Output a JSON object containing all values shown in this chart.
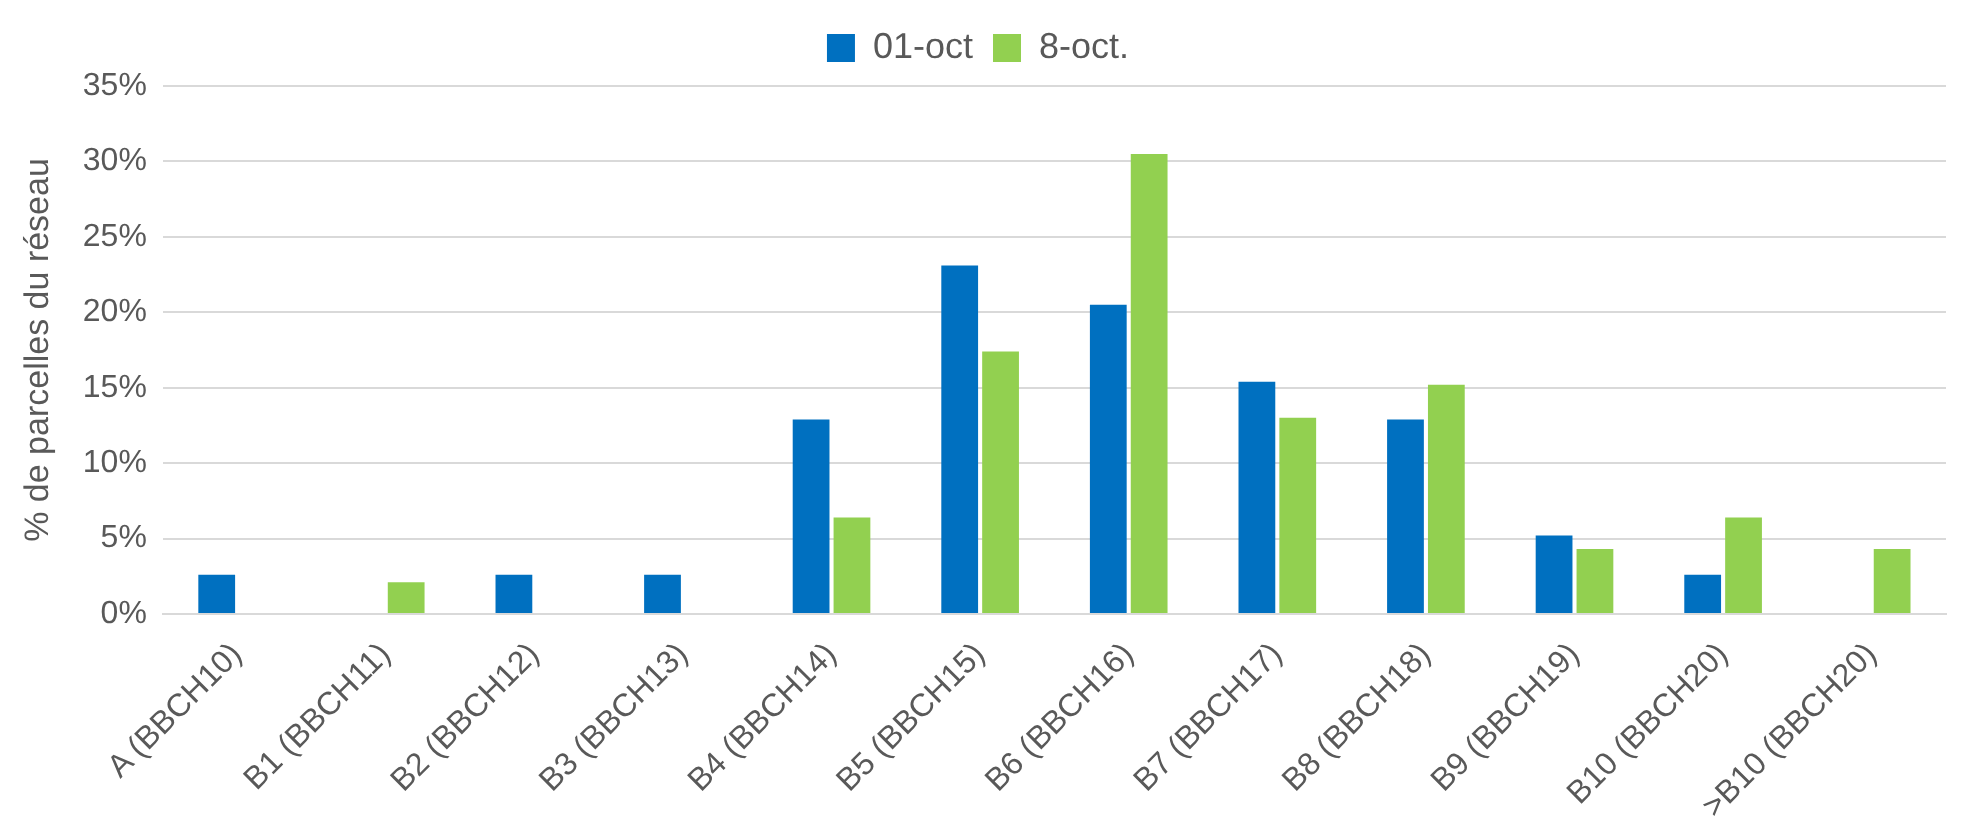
{
  "chart_data": {
    "type": "bar",
    "ylabel": "% de parcelles du réseau",
    "categories": [
      "A (BBCH10)",
      "B1 (BBCH11)",
      "B2 (BBCH12)",
      "B3 (BBCH13)",
      "B4 (BBCH14)",
      "B5 (BBCH15)",
      "B6 (BBCH16)",
      "B7 (BBCH17)",
      "B8 (BBCH18)",
      "B9 (BBCH19)",
      "B10 (BBCH20)",
      ">B10 (BBCH20)"
    ],
    "series": [
      {
        "name": "01-oct",
        "color": "#0070c0",
        "values": [
          2.6,
          0,
          2.6,
          2.6,
          12.9,
          23.1,
          20.5,
          15.4,
          12.9,
          5.2,
          2.6,
          0
        ]
      },
      {
        "name": "8-oct.",
        "color": "#92d050",
        "values": [
          0,
          2.1,
          0,
          0,
          6.4,
          17.4,
          30.5,
          13.0,
          15.2,
          4.3,
          6.4,
          4.3
        ]
      }
    ],
    "ylim": [
      0,
      35
    ],
    "yticks": [
      {
        "value": 0,
        "label": "0%"
      },
      {
        "value": 5,
        "label": "5%"
      },
      {
        "value": 10,
        "label": "10%"
      },
      {
        "value": 15,
        "label": "15%"
      },
      {
        "value": 20,
        "label": "20%"
      },
      {
        "value": 25,
        "label": "25%"
      },
      {
        "value": 30,
        "label": "30%"
      },
      {
        "value": 35,
        "label": "35%"
      }
    ],
    "grid": "y",
    "legend": "top"
  }
}
